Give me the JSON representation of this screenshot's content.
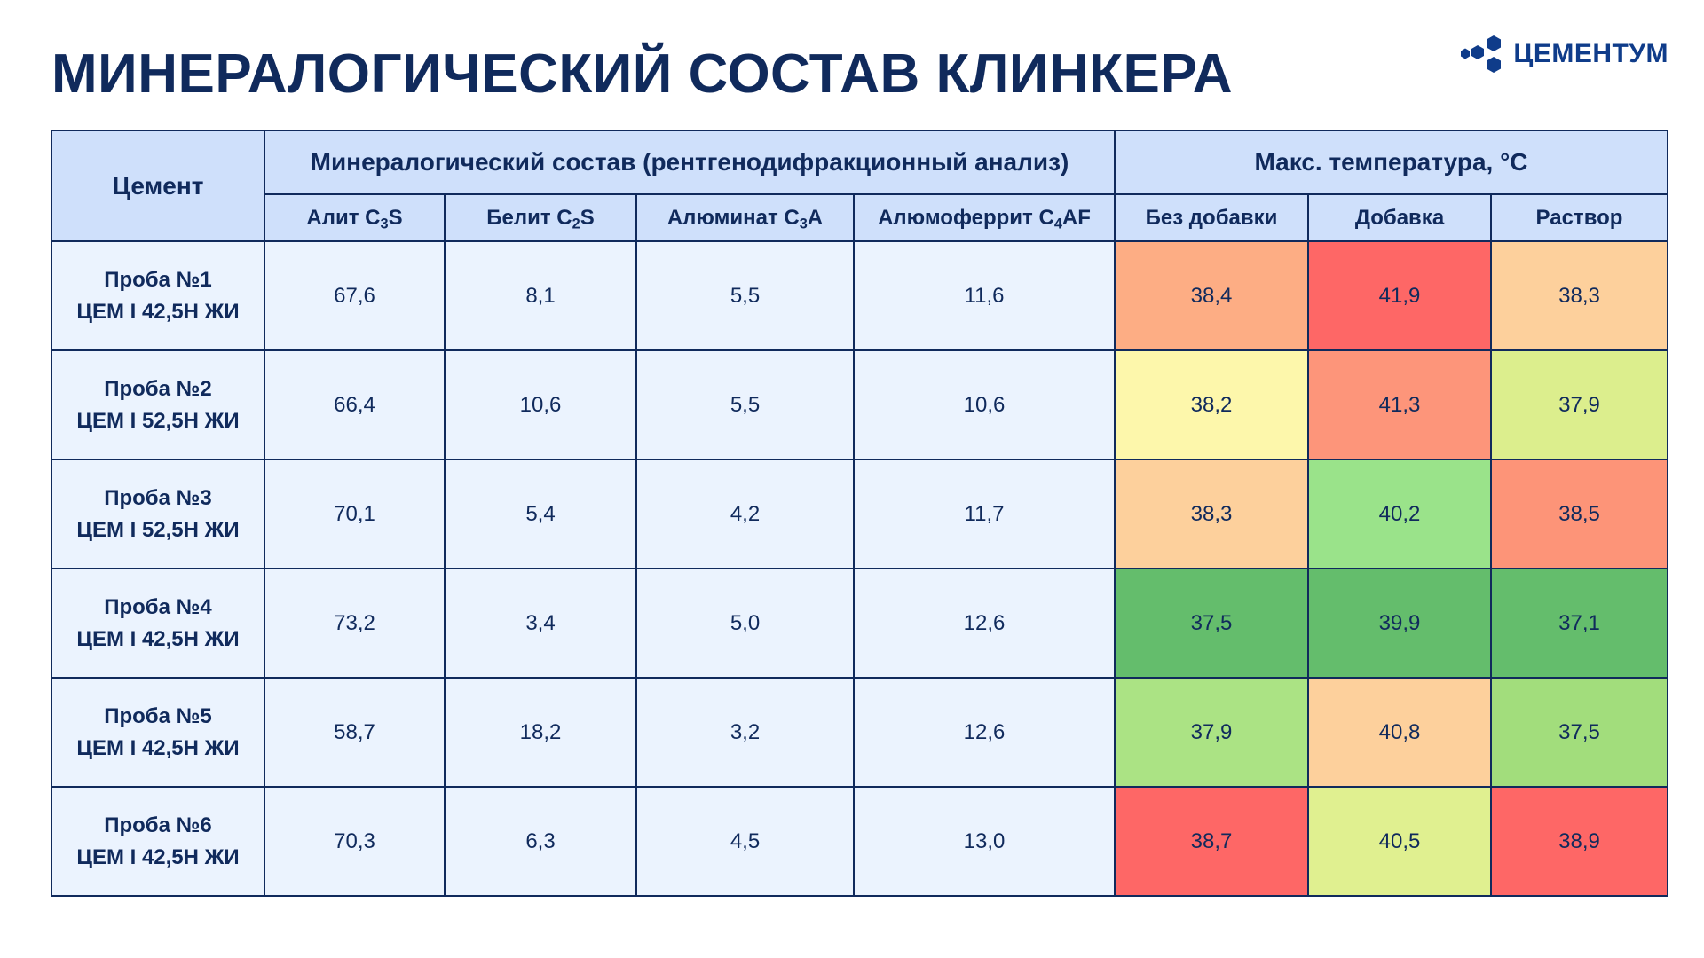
{
  "title": "МИНЕРАЛОГИЧЕСКИЙ СОСТАВ КЛИНКЕРА",
  "logo": {
    "text": "ЦЕМЕНТУМ",
    "color": "#0f3c8a"
  },
  "table": {
    "header": {
      "cement": "Цемент",
      "composition_group": "Минералогический состав (рентгенодифракционный анализ)",
      "temperature_group": "Макс. температура, °С",
      "composition_columns": [
        {
          "name": "Алит C",
          "sub": "3",
          "suffix": "S"
        },
        {
          "name": "Белит C",
          "sub": "2",
          "suffix": "S"
        },
        {
          "name": "Алюминат C",
          "sub": "3",
          "suffix": "A"
        },
        {
          "name": "Алюмоферрит C",
          "sub": "4",
          "suffix": "AF"
        }
      ],
      "temperature_columns": [
        "Без добавки",
        "Добавка",
        "Раствор"
      ]
    },
    "rows": [
      {
        "sample": "Проба №1",
        "cement": "ЦЕМ I 42,5Н ЖИ",
        "alite": "67,6",
        "belite": "8,1",
        "aluminate": "5,5",
        "aluminoferrite": "11,6",
        "temps": [
          {
            "value": "38,4",
            "color": "#fdad84"
          },
          {
            "value": "41,9",
            "color": "#fe6766"
          },
          {
            "value": "38,3",
            "color": "#fdd09c"
          }
        ]
      },
      {
        "sample": "Проба №2",
        "cement": "ЦЕМ I 52,5Н ЖИ",
        "alite": "66,4",
        "belite": "10,6",
        "aluminate": "5,5",
        "aluminoferrite": "10,6",
        "temps": [
          {
            "value": "38,2",
            "color": "#fdf7ab"
          },
          {
            "value": "41,3",
            "color": "#fd957a"
          },
          {
            "value": "37,9",
            "color": "#dcee8d"
          }
        ]
      },
      {
        "sample": "Проба №3",
        "cement": "ЦЕМ I 52,5Н ЖИ",
        "alite": "70,1",
        "belite": "5,4",
        "aluminate": "4,2",
        "aluminoferrite": "11,7",
        "temps": [
          {
            "value": "38,3",
            "color": "#fdd09c"
          },
          {
            "value": "40,2",
            "color": "#9ae38a"
          },
          {
            "value": "38,5",
            "color": "#fd9478"
          }
        ]
      },
      {
        "sample": "Проба №4",
        "cement": "ЦЕМ I 42,5Н ЖИ",
        "alite": "73,2",
        "belite": "3,4",
        "aluminate": "5,0",
        "aluminoferrite": "12,6",
        "temps": [
          {
            "value": "37,5",
            "color": "#64bd6c"
          },
          {
            "value": "39,9",
            "color": "#64bd6c"
          },
          {
            "value": "37,1",
            "color": "#64bd6c"
          }
        ]
      },
      {
        "sample": "Проба №5",
        "cement": "ЦЕМ I 42,5Н ЖИ",
        "alite": "58,7",
        "belite": "18,2",
        "aluminate": "3,2",
        "aluminoferrite": "12,6",
        "temps": [
          {
            "value": "37,9",
            "color": "#abe384"
          },
          {
            "value": "40,8",
            "color": "#fdd09c"
          },
          {
            "value": "37,5",
            "color": "#a2dd7c"
          }
        ]
      },
      {
        "sample": "Проба №6",
        "cement": "ЦЕМ I 42,5Н ЖИ",
        "alite": "70,3",
        "belite": "6,3",
        "aluminate": "4,5",
        "aluminoferrite": "13,0",
        "temps": [
          {
            "value": "38,7",
            "color": "#fe6766"
          },
          {
            "value": "40,5",
            "color": "#e0f090"
          },
          {
            "value": "38,9",
            "color": "#fe6766"
          }
        ]
      }
    ]
  }
}
